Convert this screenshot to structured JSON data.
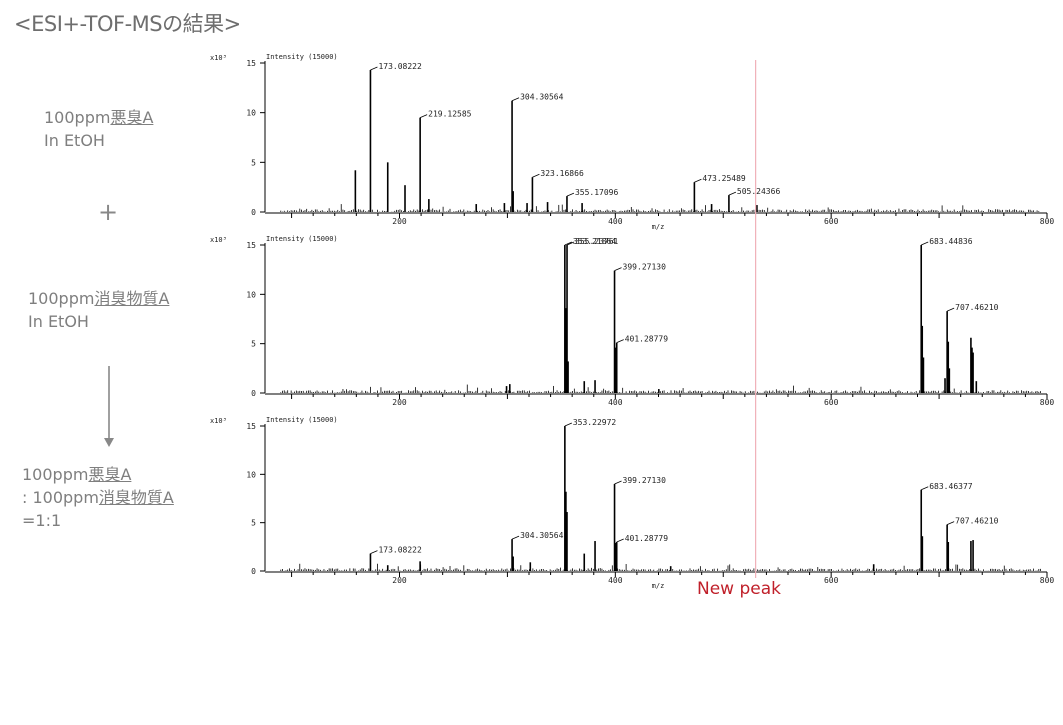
{
  "title": "<ESI+-TOF-MSの結果>",
  "labels": {
    "sample1": {
      "line1_prefix": "100ppm",
      "line1_ul": "悪臭A",
      "line2": "In EtOH"
    },
    "plus": "+",
    "sample2": {
      "line1_prefix": "100ppm",
      "line1_ul": "消臭物質A",
      "line2": "In EtOH"
    },
    "sample3": {
      "line1_prefix": "100ppm",
      "line1_ul": "悪臭A",
      "line2_prefix": ": 100ppm",
      "line2_ul": "消臭物質A",
      "line3": "=1:1"
    }
  },
  "new_peak_label": "New peak",
  "colors": {
    "trace": "#000000",
    "new_peak_line": "#f0b0b8",
    "new_peak_text": "#c0202a"
  },
  "chart_data": [
    {
      "type": "line",
      "panel": "top",
      "scale_label": "x10³",
      "intensity_label": "Intensity (15000)",
      "xlabel": "m/z",
      "xlim": [
        80,
        800
      ],
      "ylim": [
        0,
        15
      ],
      "x_ticks": [
        200,
        400,
        600,
        800
      ],
      "y_ticks": [
        0,
        5,
        10,
        15
      ],
      "peaks": [
        {
          "x": 173.08222,
          "y": 14.3,
          "label": "173.08222"
        },
        {
          "x": 219.12585,
          "y": 9.5,
          "label": "219.12585"
        },
        {
          "x": 304.30564,
          "y": 11.2,
          "label": "304.30564"
        },
        {
          "x": 323.16866,
          "y": 3.5,
          "label": "323.16866"
        },
        {
          "x": 355.17096,
          "y": 1.6,
          "label": "355.17096"
        },
        {
          "x": 473.25489,
          "y": 3.0,
          "label": "473.25489"
        },
        {
          "x": 505.24366,
          "y": 1.7,
          "label": "505.24366"
        },
        {
          "x": 159.1,
          "y": 4.2
        },
        {
          "x": 189.1,
          "y": 5.0
        },
        {
          "x": 205.1,
          "y": 2.7
        },
        {
          "x": 227.2,
          "y": 1.3
        },
        {
          "x": 305.3,
          "y": 2.1
        },
        {
          "x": 318.2,
          "y": 0.9
        },
        {
          "x": 337.2,
          "y": 1.0
        },
        {
          "x": 369.2,
          "y": 0.9
        },
        {
          "x": 489.2,
          "y": 0.8
        },
        {
          "x": 531.2,
          "y": 0.7
        },
        {
          "x": 271.1,
          "y": 0.8
        },
        {
          "x": 297.2,
          "y": 0.9
        }
      ]
    },
    {
      "type": "line",
      "panel": "middle",
      "scale_label": "x10³",
      "intensity_label": "Intensity (15000)",
      "xlabel": "",
      "xlim": [
        80,
        800
      ],
      "ylim": [
        0,
        15
      ],
      "x_ticks": [
        200,
        400,
        600,
        800
      ],
      "y_ticks": [
        0,
        5,
        10,
        15
      ],
      "peaks": [
        {
          "x": 353.21864,
          "y": 15.0,
          "label": "353.21864"
        },
        {
          "x": 355.23761,
          "y": 15.0,
          "label": "355.23761"
        },
        {
          "x": 399.2713,
          "y": 12.4,
          "label": "399.27130"
        },
        {
          "x": 401.28779,
          "y": 5.1,
          "label": "401.28779"
        },
        {
          "x": 683.44836,
          "y": 15.0,
          "label": "683.44836"
        },
        {
          "x": 707.4621,
          "y": 8.3,
          "label": "707.46210"
        },
        {
          "x": 354.2,
          "y": 8.6
        },
        {
          "x": 356.2,
          "y": 3.2
        },
        {
          "x": 400.3,
          "y": 4.6
        },
        {
          "x": 684.4,
          "y": 6.8
        },
        {
          "x": 685.5,
          "y": 3.6
        },
        {
          "x": 708.5,
          "y": 5.2
        },
        {
          "x": 709.5,
          "y": 2.5
        },
        {
          "x": 729.5,
          "y": 5.6
        },
        {
          "x": 730.5,
          "y": 4.6
        },
        {
          "x": 731.5,
          "y": 4.1
        },
        {
          "x": 705.5,
          "y": 1.5
        },
        {
          "x": 371.2,
          "y": 1.2
        },
        {
          "x": 381.2,
          "y": 1.3
        },
        {
          "x": 302.2,
          "y": 0.9
        },
        {
          "x": 299.2,
          "y": 0.7
        },
        {
          "x": 734.5,
          "y": 1.2
        },
        {
          "x": 440.3,
          "y": 0.4
        }
      ]
    },
    {
      "type": "line",
      "panel": "bottom",
      "scale_label": "x10³",
      "intensity_label": "Intensity (15000)",
      "xlabel": "m/z",
      "xlim": [
        80,
        800
      ],
      "ylim": [
        0,
        15
      ],
      "x_ticks": [
        200,
        400,
        600,
        800
      ],
      "y_ticks": [
        0,
        5,
        10,
        15
      ],
      "peaks": [
        {
          "x": 173.08222,
          "y": 1.8,
          "label": "173.08222"
        },
        {
          "x": 304.30564,
          "y": 3.3,
          "label": "304.30564"
        },
        {
          "x": 353.22972,
          "y": 15.0,
          "label": "353.22972"
        },
        {
          "x": 399.2713,
          "y": 9.0,
          "label": "399.27130"
        },
        {
          "x": 401.28779,
          "y": 3.0,
          "label": "401.28779"
        },
        {
          "x": 683.46377,
          "y": 8.4,
          "label": "683.46377"
        },
        {
          "x": 707.4621,
          "y": 4.8,
          "label": "707.46210"
        },
        {
          "x": 354.2,
          "y": 8.2
        },
        {
          "x": 355.2,
          "y": 6.1
        },
        {
          "x": 381.2,
          "y": 3.1
        },
        {
          "x": 371.2,
          "y": 1.8
        },
        {
          "x": 400.3,
          "y": 2.9
        },
        {
          "x": 684.5,
          "y": 3.6
        },
        {
          "x": 708.5,
          "y": 3.0
        },
        {
          "x": 729.5,
          "y": 3.1
        },
        {
          "x": 731.5,
          "y": 3.2
        },
        {
          "x": 305.3,
          "y": 1.5
        },
        {
          "x": 219.1,
          "y": 1.0
        },
        {
          "x": 321.2,
          "y": 0.9
        },
        {
          "x": 451.3,
          "y": 0.5
        },
        {
          "x": 639.4,
          "y": 0.7
        },
        {
          "x": 189.1,
          "y": 0.6
        }
      ]
    }
  ]
}
